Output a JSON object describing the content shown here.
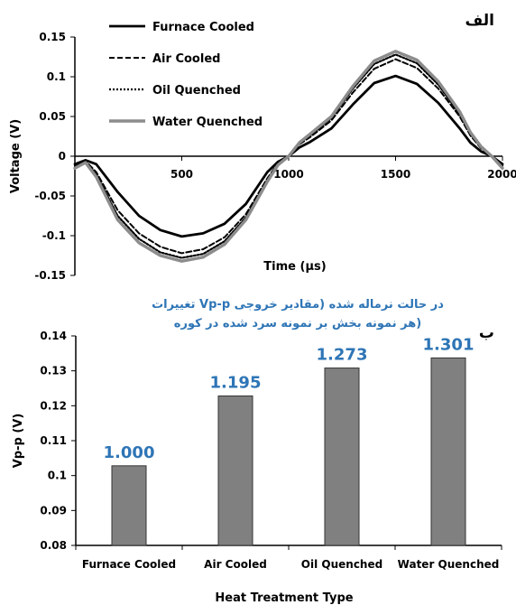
{
  "chart_data": [
    {
      "type": "line",
      "panel_label": "الف",
      "xlabel": "Time (µs)",
      "ylabel": "Voltage (V)",
      "xlim": [
        0,
        2000
      ],
      "ylim": [
        -0.15,
        0.15
      ],
      "x_ticks": [
        "500",
        "1000",
        "1500",
        "2000"
      ],
      "x_tick_values": [
        500,
        1000,
        1500,
        2000
      ],
      "y_ticks": [
        "0.15",
        "0.1",
        "0.05",
        "0",
        "-0.05",
        "-0.1",
        "-0.15"
      ],
      "y_tick_values": [
        0.15,
        0.1,
        0.05,
        0,
        -0.05,
        -0.1,
        -0.15
      ],
      "legend_position": "top-left",
      "x": [
        0,
        50,
        100,
        200,
        300,
        400,
        500,
        600,
        700,
        800,
        900,
        950,
        1000,
        1050,
        1100,
        1200,
        1300,
        1400,
        1500,
        1600,
        1700,
        1800,
        1850,
        1900,
        1950,
        2000
      ],
      "series": [
        {
          "name": "Furnace Cooled",
          "color": "#000000",
          "dash": "solid",
          "values": [
            -0.01,
            -0.005,
            -0.01,
            -0.045,
            -0.075,
            -0.093,
            -0.101,
            -0.097,
            -0.085,
            -0.06,
            -0.02,
            -0.007,
            0.0,
            0.011,
            0.018,
            0.035,
            0.065,
            0.092,
            0.101,
            0.091,
            0.067,
            0.035,
            0.017,
            0.006,
            0.0,
            -0.01
          ]
        },
        {
          "name": "Air Cooled",
          "color": "#000000",
          "dash": "dashed",
          "values": [
            -0.012,
            -0.006,
            -0.02,
            -0.068,
            -0.097,
            -0.114,
            -0.122,
            -0.117,
            -0.102,
            -0.073,
            -0.028,
            -0.009,
            0.0,
            0.015,
            0.024,
            0.045,
            0.08,
            0.11,
            0.122,
            0.111,
            0.085,
            0.05,
            0.026,
            0.01,
            0.0,
            -0.012
          ]
        },
        {
          "name": "Oil Quenched",
          "color": "#000000",
          "dash": "dotted",
          "values": [
            -0.014,
            -0.007,
            -0.023,
            -0.075,
            -0.104,
            -0.121,
            -0.128,
            -0.123,
            -0.107,
            -0.077,
            -0.03,
            -0.01,
            0.0,
            0.016,
            0.026,
            0.048,
            0.085,
            0.116,
            0.128,
            0.117,
            0.09,
            0.053,
            0.028,
            0.011,
            0.0,
            -0.014
          ]
        },
        {
          "name": "Water Quenched",
          "color": "#8c8c8c",
          "dash": "solid",
          "values": [
            -0.015,
            -0.008,
            -0.026,
            -0.08,
            -0.109,
            -0.125,
            -0.132,
            -0.127,
            -0.111,
            -0.08,
            -0.032,
            -0.011,
            0.0,
            0.017,
            0.028,
            0.05,
            0.088,
            0.12,
            0.132,
            0.121,
            0.094,
            0.056,
            0.03,
            0.012,
            0.0,
            -0.015
          ]
        }
      ]
    },
    {
      "type": "bar",
      "panel_label": "ب",
      "title_line1": "تغییرات Vp-p در حالت نرماله شده (مقادیر خروجی",
      "title_line2": "هر نمونه  بخش بر نمونه سرد شده در کوره)",
      "xlabel": "Heat Treatment Type",
      "ylabel": "Vp-p (V)",
      "ylim": [
        0.08,
        0.14
      ],
      "y_ticks": [
        "0.14",
        "0.13",
        "0.12",
        "0.11",
        "0.1",
        "0.09",
        "0.08"
      ],
      "y_tick_values": [
        0.14,
        0.13,
        0.12,
        0.11,
        0.1,
        0.09,
        0.08
      ],
      "categories": [
        "Furnace Cooled",
        "Air Cooled",
        "Oil Quenched",
        "Water Quenched"
      ],
      "values": [
        0.1028,
        0.1228,
        0.1308,
        0.1337
      ],
      "data_labels": [
        "1.000",
        "1.195",
        "1.273",
        "1.301"
      ],
      "bar_color": "#808080",
      "label_color": "#2e75b6"
    }
  ]
}
